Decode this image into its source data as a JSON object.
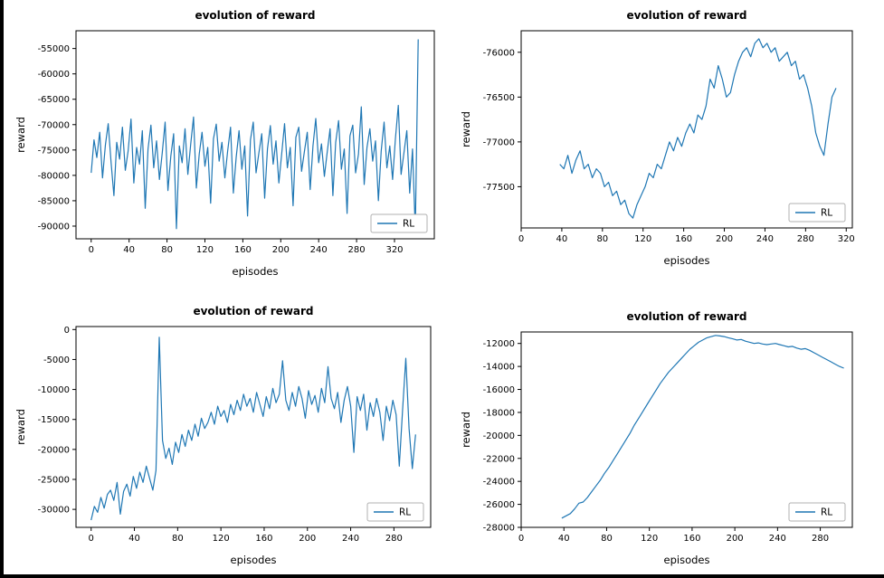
{
  "colors": {
    "line": "#1f77b4",
    "spine": "#000000",
    "text": "#000000",
    "legend_border": "#b0b0b0",
    "background": "#ffffff"
  },
  "legend": {
    "label": "RL",
    "position": "lower right"
  },
  "chart_data": [
    {
      "type": "line",
      "title": "evolution of reward",
      "xlabel": "episodes",
      "ylabel": "reward",
      "legend": "RL",
      "legend_position": "lower right",
      "xlim": [
        -16,
        362
      ],
      "ylim": [
        -92500,
        -51500
      ],
      "xticks": [
        0,
        40,
        80,
        120,
        160,
        200,
        240,
        280,
        320
      ],
      "yticks": [
        -90000,
        -85000,
        -80000,
        -75000,
        -70000,
        -65000,
        -60000,
        -55000
      ],
      "x_start": 0,
      "x_step": 3,
      "values": [
        -79500,
        -73000,
        -76500,
        -71500,
        -80500,
        -74000,
        -69800,
        -77500,
        -84000,
        -73500,
        -76800,
        -70500,
        -79000,
        -75200,
        -68900,
        -81500,
        -74500,
        -77800,
        -71200,
        -86500,
        -74800,
        -70100,
        -78500,
        -73200,
        -80800,
        -75600,
        -69500,
        -83000,
        -76200,
        -71800,
        -90500,
        -74200,
        -77500,
        -70800,
        -79800,
        -73800,
        -68500,
        -82500,
        -75800,
        -71500,
        -78200,
        -74500,
        -85500,
        -72800,
        -69900,
        -77200,
        -73500,
        -80500,
        -75200,
        -70500,
        -83500,
        -76500,
        -71200,
        -78800,
        -74200,
        -88000,
        -73000,
        -69500,
        -79500,
        -75500,
        -71800,
        -84500,
        -74800,
        -70200,
        -77800,
        -73200,
        -81500,
        -75800,
        -69800,
        -78500,
        -74500,
        -86000,
        -72500,
        -70500,
        -79200,
        -75200,
        -71500,
        -82800,
        -74200,
        -68800,
        -77500,
        -73800,
        -80200,
        -75500,
        -70800,
        -84000,
        -73500,
        -69200,
        -78800,
        -74800,
        -87500,
        -72200,
        -70100,
        -79500,
        -75800,
        -66500,
        -81800,
        -74500,
        -70800,
        -77200,
        -73200,
        -85000,
        -75200,
        -69500,
        -78500,
        -74200,
        -80800,
        -72800,
        -66200,
        -79800,
        -75500,
        -71200,
        -83500,
        -74800,
        -90800,
        -53200
      ]
    },
    {
      "type": "line",
      "title": "evolution of reward",
      "xlabel": "episodes",
      "ylabel": "reward",
      "legend": "RL",
      "legend_position": "lower right",
      "xlim": [
        0,
        326
      ],
      "ylim": [
        -77960,
        -75760
      ],
      "xticks": [
        0,
        40,
        80,
        120,
        160,
        200,
        240,
        280,
        320
      ],
      "yticks": [
        -77500,
        -77000,
        -76500,
        -76000
      ],
      "x_start": 38,
      "x_step": 4,
      "values": [
        -77250,
        -77300,
        -77150,
        -77350,
        -77200,
        -77100,
        -77300,
        -77250,
        -77400,
        -77300,
        -77350,
        -77500,
        -77450,
        -77600,
        -77550,
        -77700,
        -77650,
        -77800,
        -77850,
        -77700,
        -77600,
        -77500,
        -77350,
        -77400,
        -77250,
        -77300,
        -77150,
        -77000,
        -77100,
        -76950,
        -77050,
        -76900,
        -76800,
        -76900,
        -76700,
        -76750,
        -76600,
        -76300,
        -76400,
        -76150,
        -76300,
        -76500,
        -76450,
        -76250,
        -76100,
        -76000,
        -75950,
        -76050,
        -75900,
        -75850,
        -75950,
        -75900,
        -76000,
        -75950,
        -76100,
        -76050,
        -76000,
        -76150,
        -76100,
        -76300,
        -76250,
        -76400,
        -76600,
        -76900,
        -77050,
        -77150,
        -76800,
        -76500,
        -76400
      ]
    },
    {
      "type": "line",
      "title": "evolution of reward",
      "xlabel": "episodes",
      "ylabel": "reward",
      "legend": "RL",
      "legend_position": "lower right",
      "xlim": [
        -14,
        314
      ],
      "ylim": [
        -33000,
        500
      ],
      "xticks": [
        0,
        40,
        80,
        120,
        160,
        200,
        240,
        280
      ],
      "yticks": [
        -30000,
        -25000,
        -20000,
        -15000,
        -10000,
        -5000,
        0
      ],
      "x_start": 0,
      "x_step": 3,
      "values": [
        -31800,
        -29500,
        -30500,
        -28000,
        -29800,
        -27500,
        -26800,
        -28500,
        -25500,
        -30800,
        -27000,
        -25800,
        -27800,
        -24500,
        -26500,
        -23800,
        -25500,
        -22800,
        -24800,
        -26800,
        -23500,
        -1300,
        -18500,
        -21500,
        -19800,
        -22500,
        -18800,
        -20500,
        -17500,
        -19500,
        -16800,
        -18500,
        -15800,
        -17800,
        -14800,
        -16500,
        -15500,
        -13800,
        -15800,
        -12800,
        -14500,
        -13500,
        -15500,
        -12500,
        -14200,
        -11800,
        -13500,
        -10800,
        -12800,
        -11500,
        -13800,
        -10500,
        -12500,
        -14500,
        -11200,
        -13200,
        -9800,
        -12200,
        -10800,
        -5200,
        -11800,
        -13500,
        -10500,
        -12800,
        -9500,
        -11500,
        -14800,
        -10200,
        -12500,
        -11000,
        -13800,
        -9800,
        -12200,
        -6200,
        -11500,
        -13200,
        -10500,
        -15500,
        -11800,
        -9500,
        -12800,
        -20500,
        -11200,
        -13500,
        -10800,
        -16800,
        -12200,
        -14500,
        -11500,
        -13800,
        -18500,
        -12800,
        -15200,
        -11800,
        -14200,
        -22800,
        -13500,
        -4800,
        -16500,
        -23200,
        -17500
      ]
    },
    {
      "type": "line",
      "title": "evolution of reward",
      "xlabel": "episodes",
      "ylabel": "reward",
      "legend": "RL",
      "legend_position": "lower right",
      "xlim": [
        0,
        310
      ],
      "ylim": [
        -28000,
        -11000
      ],
      "xticks": [
        0,
        40,
        80,
        120,
        160,
        200,
        240,
        280
      ],
      "yticks": [
        -28000,
        -26000,
        -24000,
        -22000,
        -20000,
        -18000,
        -16000,
        -14000,
        -12000
      ],
      "x_start": 38,
      "x_step": 4,
      "values": [
        -27200,
        -27000,
        -26800,
        -26400,
        -25900,
        -25800,
        -25400,
        -24900,
        -24400,
        -23900,
        -23300,
        -22800,
        -22200,
        -21600,
        -21000,
        -20400,
        -19800,
        -19100,
        -18500,
        -17900,
        -17300,
        -16700,
        -16100,
        -15500,
        -15000,
        -14500,
        -14100,
        -13700,
        -13300,
        -12900,
        -12500,
        -12200,
        -11900,
        -11700,
        -11500,
        -11400,
        -11300,
        -11350,
        -11400,
        -11500,
        -11600,
        -11700,
        -11650,
        -11800,
        -11900,
        -12000,
        -11950,
        -12050,
        -12100,
        -12050,
        -12000,
        -12100,
        -12200,
        -12300,
        -12250,
        -12400,
        -12500,
        -12450,
        -12600,
        -12800,
        -13000,
        -13200,
        -13400,
        -13600,
        -13800,
        -14000,
        -14150
      ]
    }
  ]
}
